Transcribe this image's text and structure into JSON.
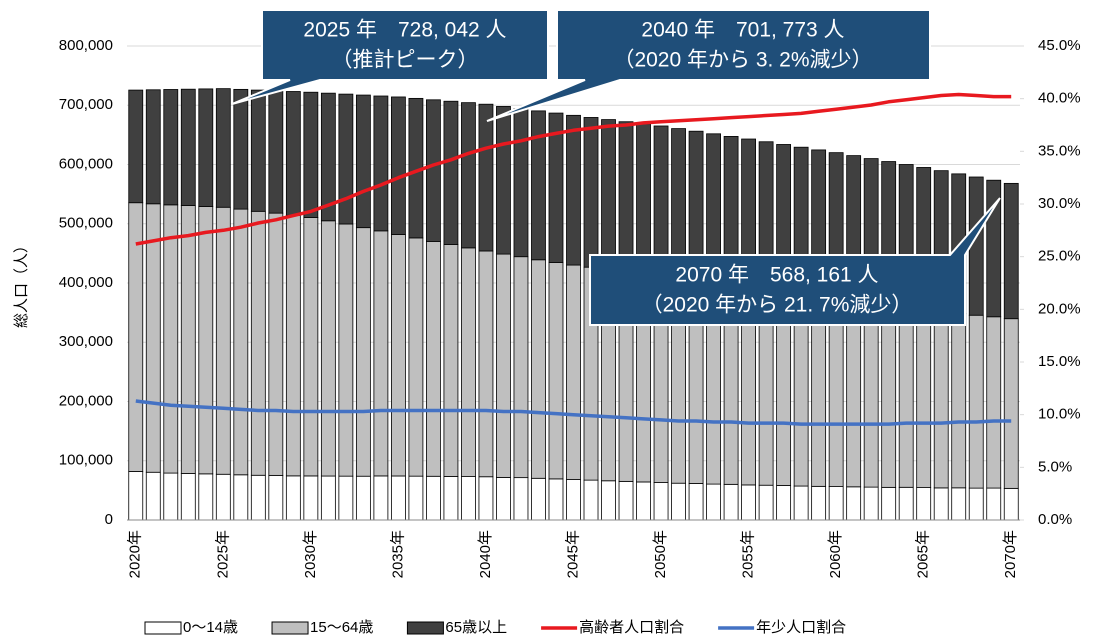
{
  "chart_data": {
    "type": "stacked-bar-line",
    "ylabel": "総人口（人）",
    "categories": [
      "2020年",
      null,
      null,
      null,
      null,
      "2025年",
      null,
      null,
      null,
      null,
      "2030年",
      null,
      null,
      null,
      null,
      "2035年",
      null,
      null,
      null,
      null,
      "2040年",
      null,
      null,
      null,
      null,
      "2045年",
      null,
      null,
      null,
      null,
      "2050年",
      null,
      null,
      null,
      null,
      "2055年",
      null,
      null,
      null,
      null,
      "2060年",
      null,
      null,
      null,
      null,
      "2065年",
      null,
      null,
      null,
      null,
      "2070年"
    ],
    "series": [
      {
        "name": "0～14歳",
        "type": "bar",
        "color": "#ffffff",
        "values": [
          82000,
          80600,
          79200,
          78500,
          77900,
          77200,
          76300,
          75500,
          75300,
          74500,
          74400,
          74200,
          74000,
          73900,
          74400,
          74300,
          74000,
          73800,
          73500,
          73300,
          73000,
          71900,
          71500,
          70400,
          69400,
          68300,
          67300,
          66200,
          65200,
          64200,
          63200,
          62100,
          61700,
          60600,
          60200,
          59200,
          58700,
          58300,
          57300,
          56800,
          56400,
          56000,
          55500,
          55100,
          55200,
          54700,
          54200,
          54300,
          53800,
          53900,
          53400
        ]
      },
      {
        "name": "15～64歳",
        "type": "bar",
        "color": "#bfbfbf",
        "values": [
          453500,
          453100,
          452700,
          452300,
          451100,
          450642,
          448400,
          445500,
          442600,
          439700,
          436100,
          430800,
          425600,
          419500,
          413600,
          407600,
          402100,
          396400,
          391600,
          386000,
          381073,
          376900,
          372900,
          368800,
          365300,
          362000,
          359400,
          356900,
          354900,
          352300,
          350400,
          348100,
          345100,
          342900,
          339900,
          337500,
          334600,
          331500,
          329000,
          325500,
          321800,
          317900,
          314200,
          309700,
          305400,
          301700,
          297800,
          293900,
          291800,
          289100,
          286361
        ]
      },
      {
        "name": "65歳以上",
        "type": "bar",
        "color": "#404040",
        "values": [
          190100,
          192400,
          194700,
          196300,
          198600,
          200200,
          202100,
          204600,
          206500,
          209000,
          211500,
          215400,
          219200,
          223800,
          227600,
          232100,
          235500,
          239000,
          241700,
          245100,
          247700,
          249200,
          249900,
          251300,
          252100,
          252700,
          252700,
          252700,
          252100,
          252100,
          251400,
          250400,
          249400,
          248300,
          247300,
          246300,
          245100,
          244000,
          242900,
          242300,
          241800,
          241100,
          240300,
          240200,
          239400,
          238600,
          237600,
          236000,
          233300,
          230500,
          228400
        ]
      },
      {
        "name": "高齢者人口割合",
        "type": "line",
        "axis": "y2",
        "color": "#e8191f",
        "values": [
          26.2,
          26.5,
          26.8,
          27.0,
          27.3,
          27.5,
          27.8,
          28.2,
          28.5,
          28.9,
          29.3,
          29.9,
          30.5,
          31.2,
          31.8,
          32.5,
          33.1,
          33.7,
          34.2,
          34.8,
          35.3,
          35.7,
          36.0,
          36.4,
          36.7,
          37.0,
          37.2,
          37.4,
          37.5,
          37.7,
          37.8,
          37.9,
          38.0,
          38.1,
          38.2,
          38.3,
          38.4,
          38.5,
          38.6,
          38.8,
          39.0,
          39.2,
          39.4,
          39.7,
          39.9,
          40.1,
          40.3,
          40.4,
          40.3,
          40.2,
          40.2
        ]
      },
      {
        "name": "年少人口割合",
        "type": "line",
        "axis": "y2",
        "color": "#4472c4",
        "values": [
          11.3,
          11.1,
          10.9,
          10.8,
          10.7,
          10.6,
          10.5,
          10.4,
          10.4,
          10.3,
          10.3,
          10.3,
          10.3,
          10.3,
          10.4,
          10.4,
          10.4,
          10.4,
          10.4,
          10.4,
          10.4,
          10.3,
          10.3,
          10.2,
          10.1,
          10.0,
          9.9,
          9.8,
          9.7,
          9.6,
          9.5,
          9.4,
          9.4,
          9.3,
          9.3,
          9.2,
          9.2,
          9.2,
          9.1,
          9.1,
          9.1,
          9.1,
          9.1,
          9.1,
          9.2,
          9.2,
          9.2,
          9.3,
          9.3,
          9.4,
          9.4
        ]
      }
    ],
    "ylim": [
      0,
      800000
    ],
    "yticks": [
      0,
      {
        "value": 100000,
        "label": "100,000"
      },
      {
        "value": 200000,
        "label": "200,000"
      },
      {
        "value": 300000,
        "label": "300,000"
      },
      {
        "value": 400000,
        "label": "400,000"
      },
      {
        "value": 500000,
        "label": "500,000"
      },
      {
        "value": 600000,
        "label": "600,000"
      },
      {
        "value": 700000,
        "label": "700,000"
      },
      {
        "value": 800000,
        "label": "800,000"
      }
    ],
    "y2lim": [
      0,
      45
    ],
    "y2ticks": [
      {
        "value": 0,
        "label": "0.0%"
      },
      {
        "value": 5,
        "label": "5.0%"
      },
      {
        "value": 10,
        "label": "10.0%"
      },
      {
        "value": 15,
        "label": "15.0%"
      },
      {
        "value": 20,
        "label": "20.0%"
      },
      {
        "value": 25,
        "label": "25.0%"
      },
      {
        "value": 30,
        "label": "30.0%"
      },
      {
        "value": 35,
        "label": "35.0%"
      },
      {
        "value": 40,
        "label": "40.0%"
      },
      {
        "value": 45,
        "label": "45.0%"
      }
    ],
    "grid": true,
    "legend": "bottom",
    "annotations": [
      {
        "lines": [
          "2025 年　728, 042 人",
          "（推計ピーク）"
        ]
      },
      {
        "lines": [
          "2040 年　701, 773 人",
          "（2020 年から 3. 2%減少）"
        ]
      },
      {
        "lines": [
          "2070 年　568, 161 人",
          "（2020 年から 21. 7%減少）"
        ]
      }
    ]
  }
}
